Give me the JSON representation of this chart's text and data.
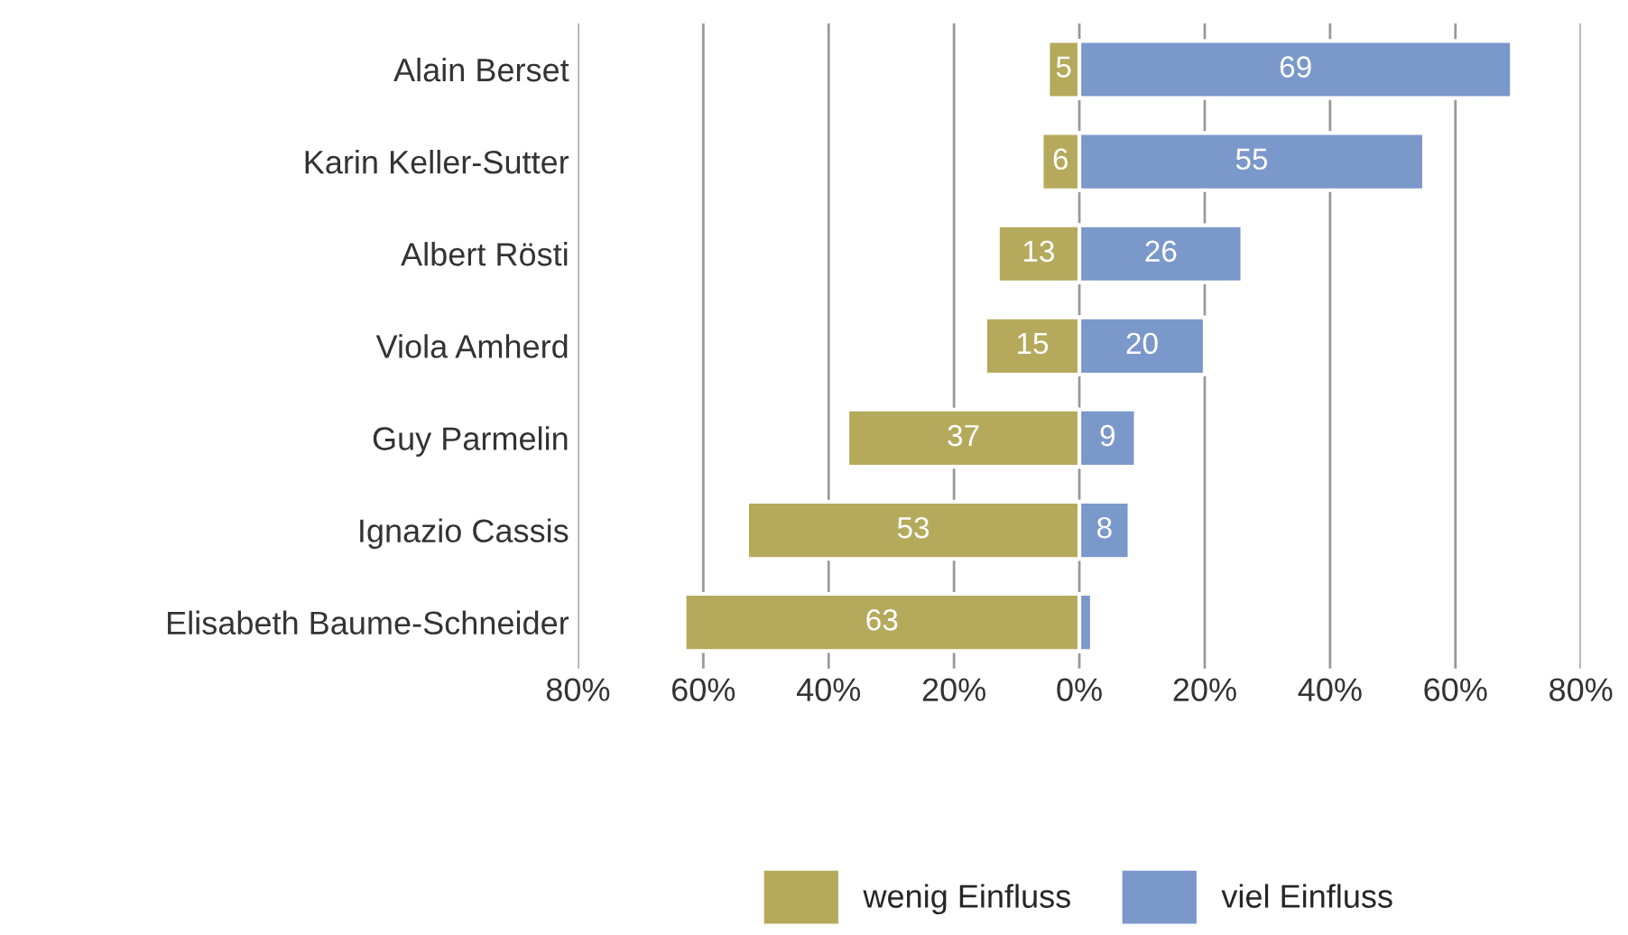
{
  "chart_data": {
    "type": "bar",
    "orientation": "horizontal",
    "categories": [
      "Alain Berset",
      "Karin Keller-Sutter",
      "Albert Rösti",
      "Viola Amherd",
      "Guy Parmelin",
      "Ignazio Cassis",
      "Elisabeth Baume-Schneider"
    ],
    "series": [
      {
        "name": "wenig Einfluss",
        "color": "#b5aa5c",
        "values": [
          5,
          6,
          13,
          15,
          37,
          53,
          63
        ],
        "base": [
          -5,
          -6,
          -13,
          -15,
          -37,
          -53,
          -63
        ],
        "value_labels": [
          "5",
          "6",
          "13",
          "15",
          "37",
          "53",
          "63"
        ]
      },
      {
        "name": "viel Einfluss",
        "color": "#7b98cb",
        "values": [
          69,
          55,
          26,
          20,
          9,
          8,
          2
        ],
        "value_labels": [
          "69",
          "55",
          "26",
          "20",
          "9",
          "8",
          null
        ]
      }
    ],
    "xlim": [
      -80,
      80
    ],
    "xticks": [
      {
        "value": -80,
        "label": "80%"
      },
      {
        "value": -60,
        "label": "60%"
      },
      {
        "value": -40,
        "label": "40%"
      },
      {
        "value": -20,
        "label": "20%"
      },
      {
        "value": 0,
        "label": "0%"
      },
      {
        "value": 20,
        "label": "20%"
      },
      {
        "value": 40,
        "label": "40%"
      },
      {
        "value": 60,
        "label": "60%"
      },
      {
        "value": 80,
        "label": "80%"
      }
    ],
    "grid": "x",
    "legend": "bottom"
  }
}
